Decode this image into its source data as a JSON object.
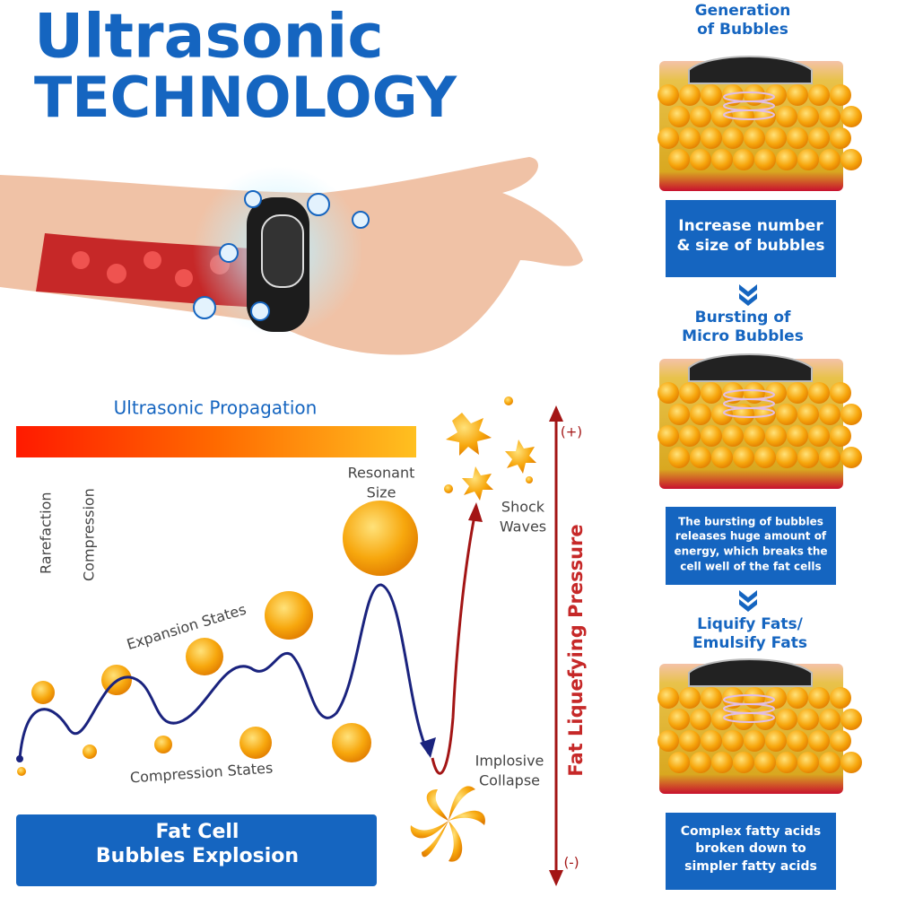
{
  "header": {
    "title": [
      "Ultrasonic",
      "TECHNOLOGY"
    ]
  },
  "steps": [
    {
      "heading": [
        "Generation",
        "of Bubbles"
      ],
      "description": [
        "Increase number",
        "& size of bubbles"
      ]
    },
    {
      "heading": [
        "Bursting of",
        "Micro Bubbles"
      ],
      "description": [
        "The bursting of bubbles",
        "releases huge amount of",
        "energy, which breaks the",
        "cell well of the fat cells"
      ]
    },
    {
      "heading": [
        "Liquify Fats/",
        "Emulsify Fats"
      ],
      "description": [
        "Complex fatty acids",
        "broken down to",
        "simpler fatty acids"
      ]
    }
  ],
  "diagram": {
    "propagation": "Ultrasonic Propagation",
    "rarefaction": "Rarefaction",
    "compression": "Compression",
    "resonant": [
      "Resonant",
      "Size"
    ],
    "expansion": "Expansion States",
    "compression_states": "Compression States",
    "shock": [
      "Shock",
      "Waves"
    ],
    "implosive": [
      "Implosive",
      "Collapse"
    ],
    "pressure": "Fat Liquefying Pressure",
    "plus": "(+)",
    "minus": "(-)",
    "banner": [
      "Fat Cell",
      "Bubbles Explosion"
    ]
  }
}
